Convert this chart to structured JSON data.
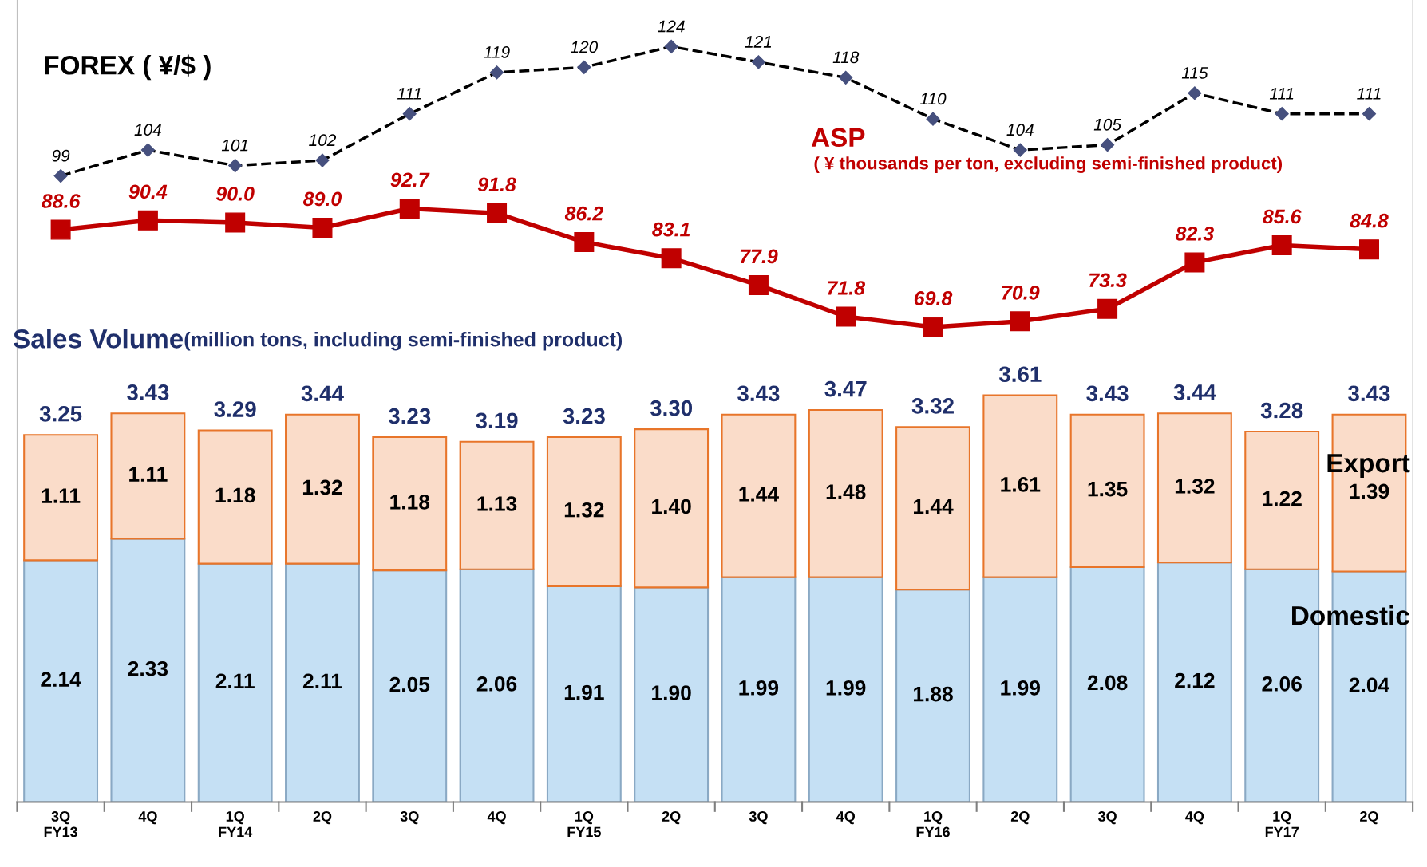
{
  "chart_data": {
    "type": "bar",
    "stacked": true,
    "title": "Sales Volume",
    "annotations": [
      "(million tons, including semi-finished product)",
      "( ¥ thousands per ton, excluding semi-finished product)"
    ],
    "categories": [
      "3Q\nFY13",
      "4Q",
      "1Q\nFY14",
      "2Q",
      "3Q",
      "4Q",
      "1Q\nFY15",
      "2Q",
      "3Q",
      "4Q",
      "1Q\nFY16",
      "2Q",
      "3Q",
      "4Q",
      "1Q\nFY17",
      "2Q"
    ],
    "series": [
      {
        "name": "Domestic",
        "color": "#c5e0f4",
        "values": [
          2.14,
          2.33,
          2.11,
          2.11,
          2.05,
          2.06,
          1.91,
          1.9,
          1.99,
          1.99,
          1.88,
          1.99,
          2.08,
          2.12,
          2.06,
          2.04
        ],
        "value_labels": [
          "2.14",
          "2.33",
          "2.11",
          "2.11",
          "2.05",
          "2.06",
          "1.91",
          "1.90",
          "1.99",
          "1.99",
          "1.88",
          "1.99",
          "2.08",
          "2.12",
          "2.06",
          "2.04"
        ]
      },
      {
        "name": "Export",
        "color": "#fadcc9",
        "values": [
          1.11,
          1.11,
          1.18,
          1.32,
          1.18,
          1.13,
          1.32,
          1.4,
          1.44,
          1.48,
          1.44,
          1.61,
          1.35,
          1.32,
          1.22,
          1.39
        ],
        "value_labels": [
          "1.11",
          "1.11",
          "1.18",
          "1.32",
          "1.18",
          "1.13",
          "1.32",
          "1.40",
          "1.44",
          "1.48",
          "1.44",
          "1.61",
          "1.35",
          "1.32",
          "1.22",
          "1.39"
        ]
      },
      {
        "name": "ASP",
        "type": "line",
        "axis": "y2",
        "color": "#c00000",
        "marker": "square",
        "line_style": "solid",
        "values": [
          88.6,
          90.4,
          90.0,
          89.0,
          92.7,
          91.8,
          86.2,
          83.1,
          77.9,
          71.8,
          69.8,
          70.9,
          73.3,
          82.3,
          85.6,
          84.8
        ],
        "value_labels": [
          "88.6",
          "90.4",
          "90.0",
          "89.0",
          "92.7",
          "91.8",
          "86.2",
          "83.1",
          "77.9",
          "71.8",
          "69.8",
          "70.9",
          "73.3",
          "82.3",
          "85.6",
          "84.8"
        ]
      },
      {
        "name": "FOREX ( ¥/$ )",
        "type": "line",
        "axis": "y2",
        "color": "#46507e",
        "marker": "diamond",
        "line_style": "dashed",
        "values": [
          99,
          104,
          101,
          102,
          111,
          119,
          120,
          124,
          121,
          118,
          110,
          104,
          105,
          115,
          111,
          111
        ],
        "value_labels": [
          "99",
          "104",
          "101",
          "102",
          "111",
          "119",
          "120",
          "124",
          "121",
          "118",
          "110",
          "104",
          "105",
          "115",
          "111",
          "111"
        ]
      }
    ],
    "totals": [
      "3.25",
      "3.43",
      "3.29",
      "3.44",
      "3.23",
      "3.19",
      "3.23",
      "3.30",
      "3.43",
      "3.47",
      "3.32",
      "3.61",
      "3.43",
      "3.44",
      "3.28",
      "3.43"
    ],
    "ylim": [
      0,
      7.1
    ],
    "y2lim": [
      -22,
      133
    ],
    "tick_labels": "x",
    "grid": false,
    "legend": false
  }
}
